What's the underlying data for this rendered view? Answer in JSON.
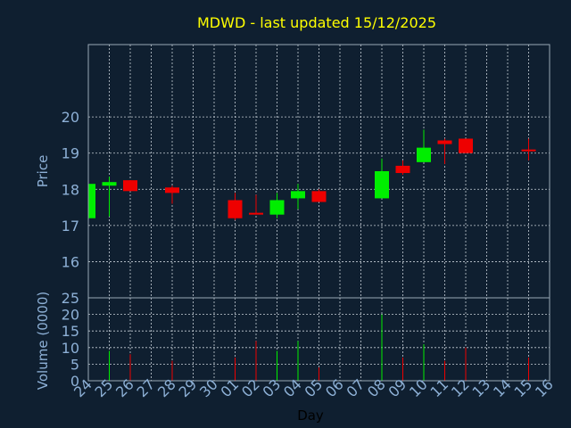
{
  "chart_data": {
    "type": "candlestick",
    "title": "MDWD - last updated 15/12/2025",
    "xlabel": "Day",
    "x_ticks": [
      "24",
      "25",
      "26",
      "27",
      "28",
      "29",
      "30",
      "01",
      "02",
      "03",
      "04",
      "05",
      "06",
      "07",
      "08",
      "09",
      "10",
      "11",
      "12",
      "13",
      "14",
      "15",
      "16"
    ],
    "price_panel": {
      "ylabel": "Price",
      "y_ticks": [
        16,
        17,
        18,
        19,
        20
      ],
      "ylim": [
        15.0,
        22.0
      ],
      "candles": [
        {
          "day": "24",
          "open": 17.2,
          "high": 18.15,
          "low": 17.2,
          "close": 18.15
        },
        {
          "day": "25",
          "open": 18.1,
          "high": 18.35,
          "low": 17.25,
          "close": 18.2
        },
        {
          "day": "26",
          "open": 18.25,
          "high": 18.25,
          "low": 17.95,
          "close": 17.95
        },
        {
          "day": "28",
          "open": 18.05,
          "high": 18.1,
          "low": 17.6,
          "close": 17.9
        },
        {
          "day": "01",
          "open": 17.7,
          "high": 17.9,
          "low": 17.15,
          "close": 17.2
        },
        {
          "day": "02",
          "open": 17.35,
          "high": 17.85,
          "low": 17.3,
          "close": 17.3
        },
        {
          "day": "03",
          "open": 17.3,
          "high": 17.9,
          "low": 17.2,
          "close": 17.7
        },
        {
          "day": "04",
          "open": 17.75,
          "high": 18.15,
          "low": 17.45,
          "close": 17.95
        },
        {
          "day": "05",
          "open": 17.95,
          "high": 18.0,
          "low": 17.65,
          "close": 17.65
        },
        {
          "day": "08",
          "open": 17.75,
          "high": 18.85,
          "low": 17.75,
          "close": 18.5
        },
        {
          "day": "09",
          "open": 18.65,
          "high": 18.8,
          "low": 18.4,
          "close": 18.45
        },
        {
          "day": "10",
          "open": 18.75,
          "high": 19.65,
          "low": 18.75,
          "close": 19.15
        },
        {
          "day": "11",
          "open": 19.35,
          "high": 19.4,
          "low": 18.7,
          "close": 19.25
        },
        {
          "day": "12",
          "open": 19.4,
          "high": 19.4,
          "low": 19.0,
          "close": 19.0
        },
        {
          "day": "15",
          "open": 19.1,
          "high": 19.4,
          "low": 18.8,
          "close": 19.05
        }
      ]
    },
    "volume_panel": {
      "ylabel": "Volume (0000)",
      "y_ticks": [
        0,
        5,
        10,
        15,
        20,
        25
      ],
      "ylim": [
        0,
        25
      ],
      "bars": [
        {
          "day": "25",
          "value": 9,
          "direction": "up"
        },
        {
          "day": "26",
          "value": 8,
          "direction": "down"
        },
        {
          "day": "28",
          "value": 6,
          "direction": "down"
        },
        {
          "day": "01",
          "value": 7,
          "direction": "down"
        },
        {
          "day": "02",
          "value": 12,
          "direction": "down"
        },
        {
          "day": "03",
          "value": 9,
          "direction": "up"
        },
        {
          "day": "04",
          "value": 12,
          "direction": "up"
        },
        {
          "day": "05",
          "value": 4,
          "direction": "down"
        },
        {
          "day": "08",
          "value": 20,
          "direction": "up"
        },
        {
          "day": "09",
          "value": 7,
          "direction": "down"
        },
        {
          "day": "10",
          "value": 11,
          "direction": "up"
        },
        {
          "day": "11",
          "value": 6,
          "direction": "down"
        },
        {
          "day": "12",
          "value": 10,
          "direction": "down"
        },
        {
          "day": "15",
          "value": 7,
          "direction": "down"
        }
      ]
    },
    "grid": true,
    "colors": {
      "background": "#0f1f30",
      "title": "#ffff00",
      "axis_text": "#8db0d6",
      "xlabel_text": "#000000",
      "frame": "#9aa8b6",
      "grid": "#c8d0d8",
      "up": "#00ee00",
      "down": "#ee0000"
    }
  }
}
